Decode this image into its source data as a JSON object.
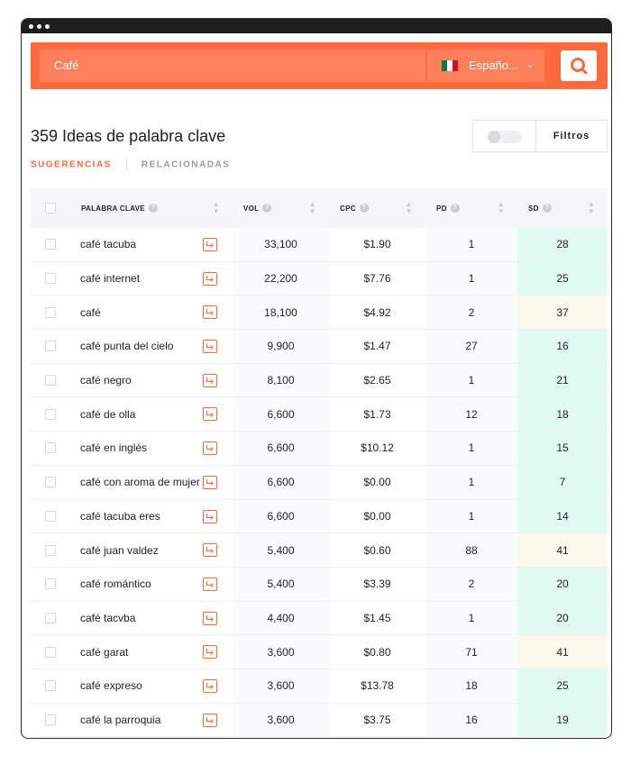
{
  "search": {
    "query": "Café",
    "language": "Españo...",
    "flag_colors": [
      "#0b7a3b",
      "#ffffff",
      "#ce1126"
    ]
  },
  "heading": "359 Ideas de palabra clave",
  "tabs": {
    "suggestions": "SUGERENCIAS",
    "related": "RELACIONADAS"
  },
  "filters_label": "Filtros",
  "table": {
    "headers": {
      "keyword": "PALABRA CLAVE",
      "vol": "VOL",
      "cpc": "CPC",
      "pd": "PD",
      "sd": "SD"
    },
    "rows": [
      {
        "keyword": "café tacuba",
        "vol": "33,100",
        "cpc": "$1.90",
        "pd": "1",
        "sd": "28",
        "sd_level": "green"
      },
      {
        "keyword": "café internet",
        "vol": "22,200",
        "cpc": "$7.76",
        "pd": "1",
        "sd": "25",
        "sd_level": "green"
      },
      {
        "keyword": "café",
        "vol": "18,100",
        "cpc": "$4.92",
        "pd": "2",
        "sd": "37",
        "sd_level": "yellow"
      },
      {
        "keyword": "café punta del cielo",
        "vol": "9,900",
        "cpc": "$1.47",
        "pd": "27",
        "sd": "16",
        "sd_level": "green"
      },
      {
        "keyword": "café negro",
        "vol": "8,100",
        "cpc": "$2.65",
        "pd": "1",
        "sd": "21",
        "sd_level": "green"
      },
      {
        "keyword": "café de olla",
        "vol": "6,600",
        "cpc": "$1.73",
        "pd": "12",
        "sd": "18",
        "sd_level": "green"
      },
      {
        "keyword": "café en inglés",
        "vol": "6,600",
        "cpc": "$10.12",
        "pd": "1",
        "sd": "15",
        "sd_level": "green"
      },
      {
        "keyword": "café con aroma de mujer",
        "vol": "6,600",
        "cpc": "$0.00",
        "pd": "1",
        "sd": "7",
        "sd_level": "green"
      },
      {
        "keyword": "café tacuba eres",
        "vol": "6,600",
        "cpc": "$0.00",
        "pd": "1",
        "sd": "14",
        "sd_level": "green"
      },
      {
        "keyword": "café juan valdez",
        "vol": "5,400",
        "cpc": "$0.60",
        "pd": "88",
        "sd": "41",
        "sd_level": "yellow"
      },
      {
        "keyword": "café romántico",
        "vol": "5,400",
        "cpc": "$3.39",
        "pd": "2",
        "sd": "20",
        "sd_level": "green"
      },
      {
        "keyword": "café tacvba",
        "vol": "4,400",
        "cpc": "$1.45",
        "pd": "1",
        "sd": "20",
        "sd_level": "green"
      },
      {
        "keyword": "café garat",
        "vol": "3,600",
        "cpc": "$0.80",
        "pd": "71",
        "sd": "41",
        "sd_level": "yellow"
      },
      {
        "keyword": "café expreso",
        "vol": "3,600",
        "cpc": "$13.78",
        "pd": "18",
        "sd": "25",
        "sd_level": "green"
      },
      {
        "keyword": "café la parroquia",
        "vol": "3,600",
        "cpc": "$3.75",
        "pd": "16",
        "sd": "19",
        "sd_level": "green"
      }
    ]
  },
  "colors": {
    "accent": "#ff6a3d",
    "sd_green": "#e0fbf2",
    "sd_yellow": "#fdf8ec"
  }
}
